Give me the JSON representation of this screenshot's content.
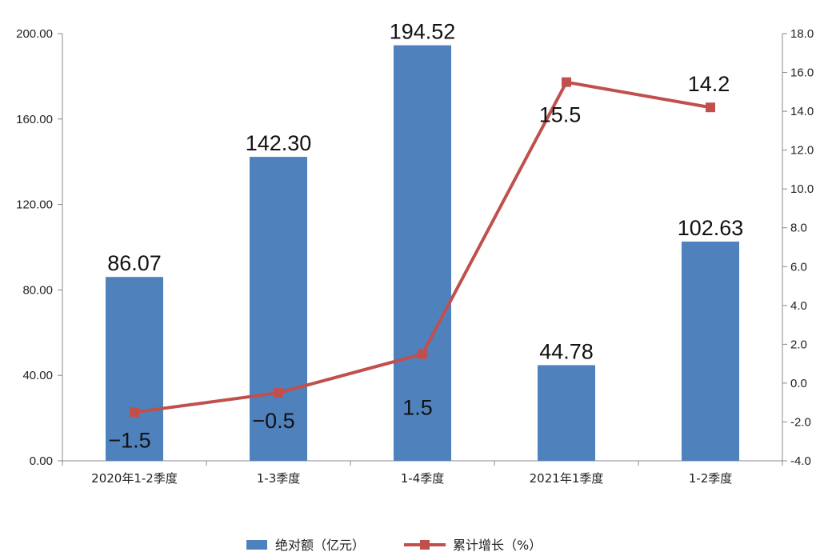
{
  "chart_data": {
    "type": "bar+line",
    "categories": [
      "2020年1-2季度",
      "1-3季度",
      "1-4季度",
      "2021年1季度",
      "1-2季度"
    ],
    "series": [
      {
        "name": "绝对额（亿元）",
        "type": "bar",
        "axis": "left",
        "color": "#4F81BD",
        "values": [
          86.07,
          142.3,
          194.52,
          44.78,
          102.63
        ],
        "labels": [
          "86.07",
          "142.30",
          "194.52",
          "44.78",
          "102.63"
        ]
      },
      {
        "name": "累计增长（%）",
        "type": "line",
        "axis": "right",
        "color": "#C0504D",
        "marker": "square",
        "values": [
          -1.5,
          -0.5,
          1.5,
          15.5,
          14.2
        ],
        "labels": [
          "−1.5",
          "−0.5",
          "1.5",
          "15.5",
          "14.2"
        ]
      }
    ],
    "y_left": {
      "min": 0,
      "max": 200,
      "ticks": [
        "0.00",
        "40.00",
        "80.00",
        "120.00",
        "160.00",
        "200.00"
      ]
    },
    "y_right": {
      "min": -4,
      "max": 18,
      "ticks": [
        "-4.0",
        "-2.0",
        "0.0",
        "2.0",
        "4.0",
        "6.0",
        "8.0",
        "10.0",
        "12.0",
        "14.0",
        "16.0",
        "18.0"
      ]
    },
    "grid": false,
    "legend_position": "bottom"
  }
}
